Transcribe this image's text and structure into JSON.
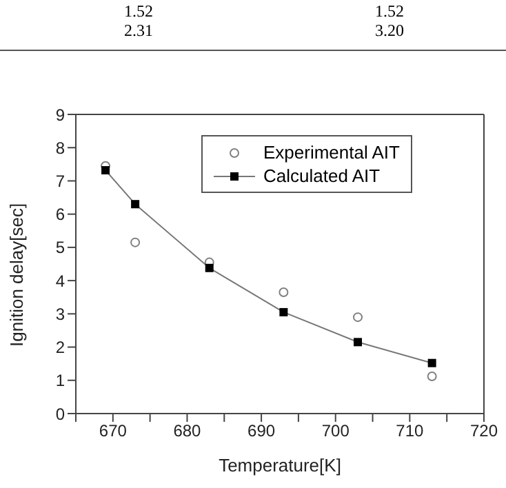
{
  "chart_data": {
    "type": "scatter",
    "xlabel": "Temperature[K]",
    "ylabel": "Ignition delay[sec]",
    "annotations": [
      "1.52",
      "1.52",
      "2.31",
      "3.20"
    ],
    "x": [
      669,
      673,
      683,
      693,
      703,
      713
    ],
    "series": [
      {
        "name": "Experimental AIT",
        "type": "scatter",
        "marker": "circle",
        "color": "#808080",
        "values": [
          7.45,
          5.15,
          4.55,
          3.65,
          2.9,
          1.12
        ]
      },
      {
        "name": "Calculated AIT",
        "type": "line",
        "marker": "square",
        "color": "#000000",
        "values": [
          7.32,
          6.3,
          4.38,
          3.05,
          2.15,
          1.52
        ]
      }
    ],
    "xlim": [
      665,
      720
    ],
    "xticks": [
      {
        "value": 665,
        "label": null
      },
      670,
      {
        "value": 675,
        "label": null
      },
      680,
      {
        "value": 685,
        "label": null
      },
      690,
      {
        "value": 695,
        "label": null
      },
      700,
      {
        "value": 705,
        "label": null
      },
      710,
      {
        "value": 715,
        "label": null
      },
      720
    ],
    "ylim": [
      0,
      9
    ],
    "yticks": [
      0,
      1,
      2,
      3,
      4,
      5,
      6,
      7,
      8,
      9
    ],
    "legend": "top right"
  }
}
